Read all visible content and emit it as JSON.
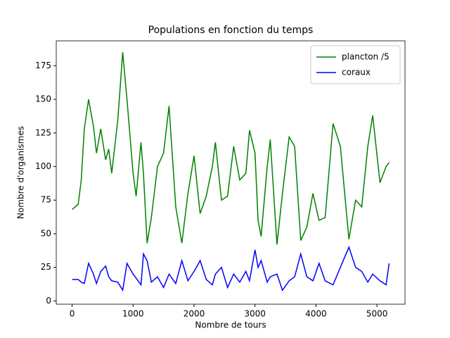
{
  "chart_data": {
    "type": "line",
    "title": "Populations en fonction du temps",
    "x_label": "Nombre de tours",
    "y_label": "Nombre d'organismes",
    "x": [
      0,
      100,
      150,
      200,
      270,
      350,
      400,
      470,
      550,
      600,
      650,
      750,
      830,
      900,
      1000,
      1050,
      1130,
      1170,
      1230,
      1300,
      1400,
      1500,
      1590,
      1700,
      1800,
      1900,
      2000,
      2100,
      2200,
      2300,
      2350,
      2450,
      2550,
      2650,
      2750,
      2850,
      2910,
      3000,
      3050,
      3100,
      3200,
      3250,
      3360,
      3450,
      3560,
      3650,
      3750,
      3850,
      3950,
      4050,
      4150,
      4280,
      4400,
      4540,
      4650,
      4750,
      4850,
      4930,
      5050,
      5150,
      5200
    ],
    "series": [
      {
        "name": "plancton /5",
        "color": "#008000",
        "values": [
          68,
          72,
          90,
          128,
          150,
          130,
          110,
          128,
          105,
          113,
          95,
          135,
          185,
          150,
          95,
          78,
          118,
          95,
          43,
          62,
          100,
          110,
          145,
          70,
          43,
          80,
          108,
          65,
          78,
          100,
          118,
          75,
          78,
          115,
          90,
          95,
          127,
          110,
          60,
          48,
          100,
          120,
          42,
          80,
          122,
          115,
          45,
          55,
          80,
          60,
          62,
          132,
          115,
          46,
          75,
          70,
          115,
          138,
          88,
          100,
          103
        ]
      },
      {
        "name": "coraux",
        "color": "#0000ff",
        "values": [
          16,
          16,
          14,
          13,
          28,
          20,
          13,
          22,
          26,
          18,
          15,
          14,
          8,
          28,
          20,
          17,
          12,
          35,
          30,
          14,
          18,
          10,
          20,
          13,
          30,
          15,
          22,
          30,
          16,
          12,
          20,
          25,
          10,
          20,
          14,
          22,
          15,
          38,
          25,
          30,
          14,
          18,
          20,
          8,
          15,
          18,
          35,
          18,
          15,
          28,
          15,
          12,
          25,
          40,
          25,
          22,
          14,
          20,
          15,
          12,
          28
        ]
      }
    ],
    "xlim": [
      -260,
      5460
    ],
    "ylim": [
      -2.4,
      193.5
    ],
    "xticks": [
      0,
      1000,
      2000,
      3000,
      4000,
      5000
    ],
    "yticks": [
      0,
      25,
      50,
      75,
      100,
      125,
      150,
      175
    ],
    "legend": "upper right"
  }
}
